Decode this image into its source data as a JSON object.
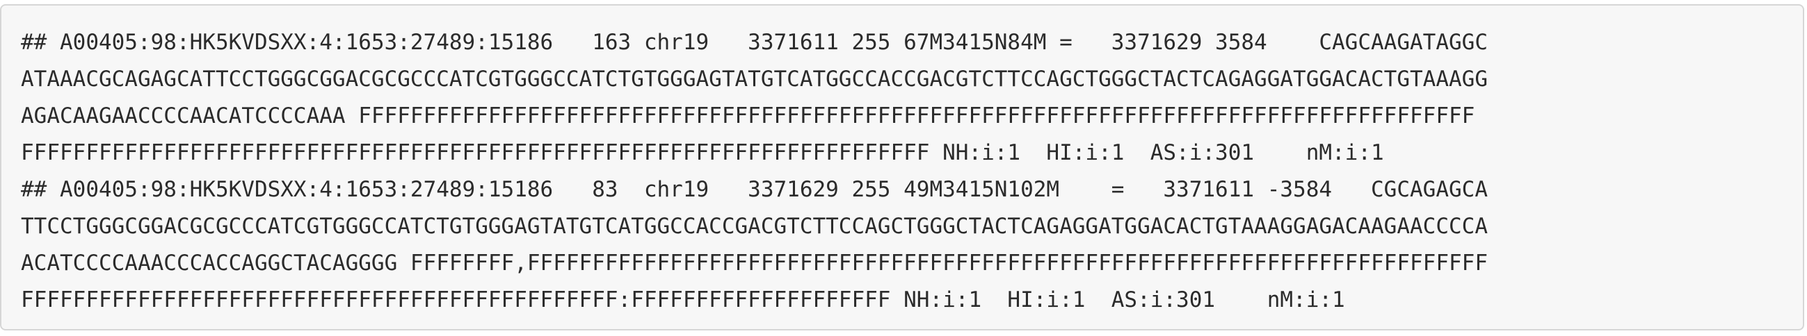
{
  "code_block": {
    "lines": [
      "## A00405:98:HK5KVDSXX:4:1653:27489:15186   163 chr19   3371611 255 67M3415N84M =   3371629 3584    CAGCAAGATAGGC",
      "ATAAACGCAGAGCATTCCTGGGCGGACGCGCCCATCGTGGGCCATCTGTGGGAGTATGTCATGGCCACCGACGTCTTCCAGCTGGGCTACTCAGAGGATGGACACTGTAAAGG",
      "AGACAAGAACCCCAACATCCCCAAA FFFFFFFFFFFFFFFFFFFFFFFFFFFFFFFFFFFFFFFFFFFFFFFFFFFFFFFFFFFFFFFFFFFFFFFFFFFFFFFFFFFFFF",
      "FFFFFFFFFFFFFFFFFFFFFFFFFFFFFFFFFFFFFFFFFFFFFFFFFFFFFFFFFFFFFFFFFFFFFF NH:i:1  HI:i:1  AS:i:301    nM:i:1",
      "## A00405:98:HK5KVDSXX:4:1653:27489:15186   83  chr19   3371629 255 49M3415N102M    =   3371611 -3584   CGCAGAGCA",
      "TTCCTGGGCGGACGCGCCCATCGTGGGCCATCTGTGGGAGTATGTCATGGCCACCGACGTCTTCCAGCTGGGCTACTCAGAGGATGGACACTGTAAAGGAGACAAGAACCCCA",
      "ACATCCCCAAACCCACCAGGCTACAGGGG FFFFFFFF,FFFFFFFFFFFFFFFFFFFFFFFFFFFFFFFFFFFFFFFFFFFFFFFFFFFFFFFFFFFFFFFFFFFFFFFFFF",
      "FFFFFFFFFFFFFFFFFFFFFFFFFFFFFFFFFFFFFFFFFFFFFF:FFFFFFFFFFFFFFFFFFFF NH:i:1  HI:i:1  AS:i:301    nM:i:1"
    ]
  }
}
